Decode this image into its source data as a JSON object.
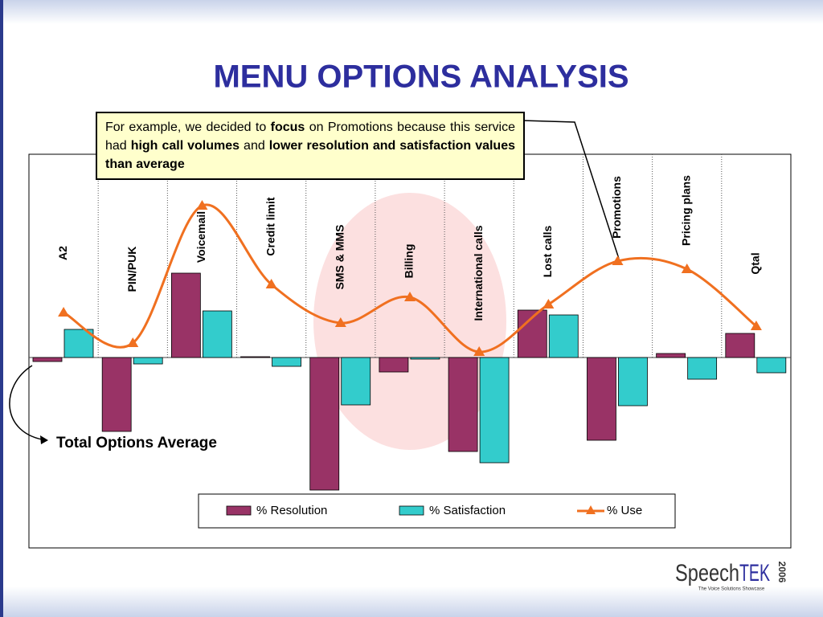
{
  "chart_data": {
    "type": "bar-line",
    "title": "MENU OPTIONS ANALYSIS",
    "categories": [
      "A2",
      "PIN/PUK",
      "Voicemail",
      "Credit limit",
      "SMS & MMS",
      "Billing",
      "International calls",
      "Lost calls",
      "Promotions",
      "Pricing plans",
      "Qtal"
    ],
    "series": [
      {
        "name": "% Resolution",
        "color": "#993366",
        "kind": "bar",
        "values": [
          -0.5,
          -9.2,
          10.5,
          0.1,
          -16.5,
          -1.8,
          -11.7,
          5.9,
          -10.3,
          0.5,
          3.0
        ]
      },
      {
        "name": "% Satisfaction",
        "color": "#33cccc",
        "kind": "bar",
        "values": [
          3.5,
          -0.8,
          5.8,
          -1.1,
          -5.9,
          -0.2,
          -13.1,
          5.3,
          -6.0,
          -2.7,
          -1.9
        ]
      },
      {
        "name": "% Use",
        "color": "#f07020",
        "kind": "line",
        "values": [
          5.6,
          1.8,
          18.9,
          9.1,
          4.3,
          7.5,
          0.7,
          6.6,
          12.0,
          11.0,
          3.9
        ]
      }
    ],
    "ylim": [
      -23.7,
      25.3
    ],
    "annotation": [
      "For example, we decided to ",
      "focus",
      " on Promotions because this service had ",
      "high call volumes",
      " and ",
      "lower resolution and satisfaction values than average"
    ],
    "baseline_label": "Total Options Average"
  },
  "logo": {
    "name_1": "Speech",
    "name_2": "TEK",
    "year": "2006",
    "tagline": "The Voice Solutions Showcase"
  }
}
